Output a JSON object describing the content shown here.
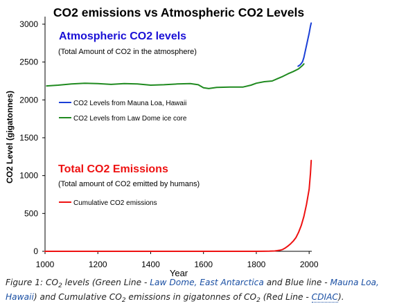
{
  "chart_data": {
    "type": "line",
    "title": "CO2 emissions vs Atmospheric CO2 Levels",
    "xlabel": "Year",
    "ylabel": "CO2 Level (gigatonnes)",
    "xlim": [
      1000,
      2010
    ],
    "ylim": [
      0,
      3100
    ],
    "x_ticks": [
      1000,
      1200,
      1400,
      1600,
      1800,
      2000
    ],
    "y_ticks": [
      0,
      500,
      1000,
      1500,
      2000,
      2500,
      3000
    ],
    "grid": false,
    "legend_position": "inside, left",
    "annotations": {
      "atmo_heading": "Atmospheric CO2 levels",
      "atmo_sub": "(Total Amount of CO2 in the atmosphere)",
      "emis_heading": "Total CO2 Emissions",
      "emis_sub": "(Total amount of CO2 emitted by humans)",
      "atmo_color": "#1a10d6",
      "emis_color": "#ee1111"
    },
    "series": [
      {
        "name": "CO2 Levels from Law Dome ice core",
        "color": "#1f8a1f",
        "x": [
          1006,
          1050,
          1100,
          1150,
          1200,
          1250,
          1300,
          1350,
          1400,
          1450,
          1500,
          1550,
          1580,
          1600,
          1620,
          1650,
          1700,
          1750,
          1780,
          1800,
          1830,
          1860,
          1880,
          1900,
          1920,
          1940,
          1960,
          1975,
          1980
        ],
        "y": [
          2185,
          2195,
          2210,
          2220,
          2215,
          2205,
          2215,
          2210,
          2195,
          2200,
          2210,
          2215,
          2200,
          2160,
          2150,
          2165,
          2170,
          2170,
          2195,
          2220,
          2240,
          2250,
          2280,
          2310,
          2345,
          2375,
          2410,
          2455,
          2475
        ]
      },
      {
        "name": "CO2 Levels from Mauna Loa, Hawaii",
        "color": "#1a3fd6",
        "x": [
          1958,
          1965,
          1970,
          1975,
          1980,
          1985,
          1990,
          1995,
          2000,
          2005,
          2008
        ],
        "y": [
          2445,
          2460,
          2480,
          2505,
          2560,
          2640,
          2720,
          2800,
          2880,
          2975,
          3015
        ]
      },
      {
        "name": "Cumulative CO2 emissions",
        "color": "#ee1111",
        "x": [
          1000,
          1750,
          1800,
          1850,
          1870,
          1890,
          1900,
          1910,
          1920,
          1930,
          1940,
          1950,
          1960,
          1970,
          1980,
          1990,
          2000,
          2005,
          2008
        ],
        "y": [
          0,
          0,
          0,
          2,
          5,
          15,
          25,
          45,
          70,
          100,
          135,
          180,
          250,
          340,
          460,
          620,
          820,
          1030,
          1200
        ]
      }
    ]
  },
  "caption": {
    "p1": "Figure 1: CO",
    "sub1": "2",
    "p2": " levels (Green Line - ",
    "link1": "Law Dome, East Antarctica",
    "p3": " and Blue line - ",
    "link2": "Mauna Loa, Hawaii",
    "p4": ") and Cumulative CO",
    "sub2": "2",
    "p5": " emissions in gigatonnes of CO",
    "sub3": "2",
    "p6": " (Red Line - ",
    "link3": "CDIAC",
    "p7": ")."
  }
}
